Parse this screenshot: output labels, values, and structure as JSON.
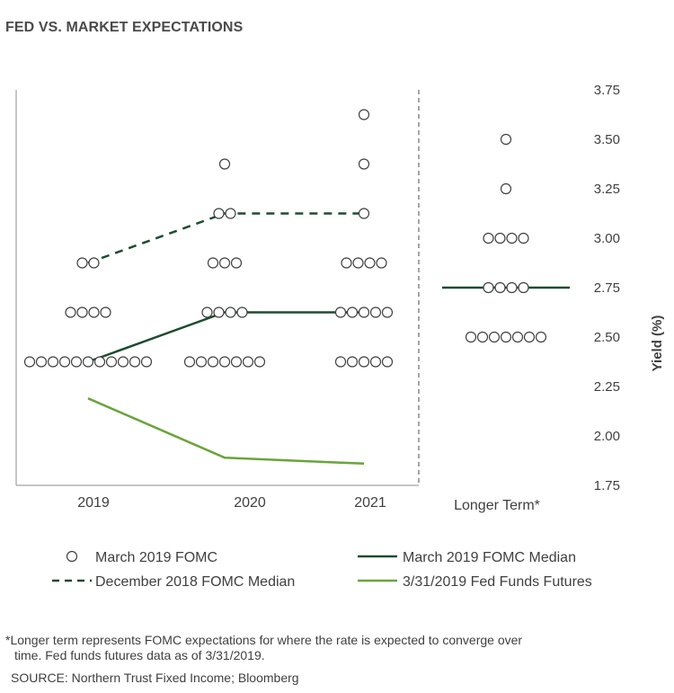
{
  "title": "FED VS. MARKET EXPECTATIONS",
  "footnote_line1": "*Longer term represents FOMC expectations for where the rate is expected to converge over",
  "footnote_line2": "time. Fed funds futures data as of 3/31/2019.",
  "source": "SOURCE: Northern Trust Fixed Income; Bloomberg",
  "colors": {
    "march_median": "#1d4d31",
    "december_median": "#1d4d31",
    "futures": "#6aa43a",
    "dots": "#404040",
    "divider": "#9a9a9a"
  },
  "chart_data": {
    "type": "scatter",
    "ylabel": "Yield (%)",
    "y_axis_side": "right",
    "ylim": [
      1.75,
      3.75
    ],
    "y_ticks": [
      "3.75",
      "3.50",
      "3.25",
      "3.00",
      "2.75",
      "2.50",
      "2.25",
      "2.00",
      "1.75"
    ],
    "categories": [
      "2019",
      "2020",
      "2021",
      "Longer Term*"
    ],
    "legend": {
      "dots": "March 2019 FOMC",
      "march_median": "March 2019 FOMC Median",
      "december_median": "December 2018 FOMC Median",
      "futures": "3/31/2019 Fed Funds Futures"
    },
    "dot_plot": [
      {
        "category": "2019",
        "levels": [
          {
            "y": 2.375,
            "count": 11
          },
          {
            "y": 2.625,
            "count": 4
          },
          {
            "y": 2.875,
            "count": 2
          }
        ]
      },
      {
        "category": "2020",
        "levels": [
          {
            "y": 2.375,
            "count": 7
          },
          {
            "y": 2.625,
            "count": 4
          },
          {
            "y": 2.875,
            "count": 3
          },
          {
            "y": 3.125,
            "count": 2
          },
          {
            "y": 3.375,
            "count": 1
          }
        ]
      },
      {
        "category": "2021",
        "levels": [
          {
            "y": 2.375,
            "count": 5
          },
          {
            "y": 2.625,
            "count": 5
          },
          {
            "y": 2.875,
            "count": 4
          },
          {
            "y": 3.125,
            "count": 1
          },
          {
            "y": 3.375,
            "count": 1
          },
          {
            "y": 3.625,
            "count": 1
          }
        ]
      },
      {
        "category": "Longer Term*",
        "levels": [
          {
            "y": 2.5,
            "count": 7
          },
          {
            "y": 2.75,
            "count": 4
          },
          {
            "y": 3.0,
            "count": 4
          },
          {
            "y": 3.25,
            "count": 1
          },
          {
            "y": 3.5,
            "count": 1
          }
        ]
      }
    ],
    "series": [
      {
        "name": "March 2019 FOMC Median",
        "style": "solid",
        "points": [
          [
            "2019",
            2.375
          ],
          [
            "2020",
            2.625
          ],
          [
            "2021",
            2.625
          ]
        ]
      },
      {
        "name": "December 2018 FOMC Median",
        "style": "dashed",
        "points": [
          [
            "2019",
            2.875
          ],
          [
            "2020",
            3.125
          ],
          [
            "2021",
            3.125
          ]
        ]
      },
      {
        "name": "3/31/2019 Fed Funds Futures",
        "style": "solid",
        "points": [
          [
            "2019",
            2.19
          ],
          [
            "2020",
            1.89
          ],
          [
            "2021",
            1.86
          ]
        ]
      },
      {
        "name": "Longer Term Median",
        "style": "solid",
        "points": [
          [
            "Longer Term*",
            2.75
          ]
        ]
      }
    ]
  }
}
